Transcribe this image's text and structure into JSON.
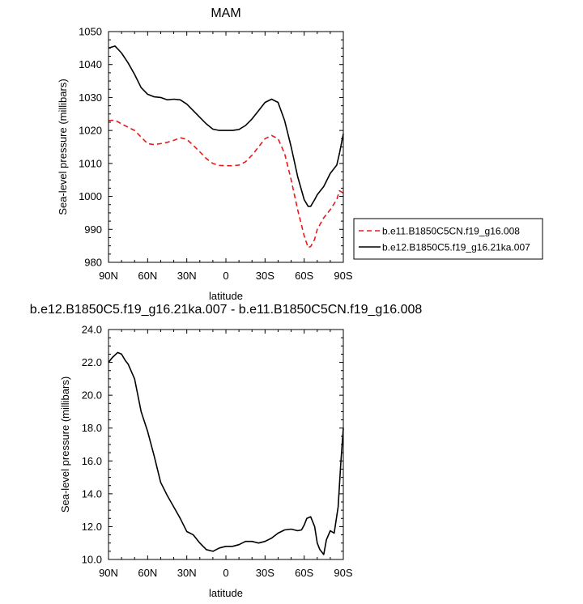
{
  "chart_data": [
    {
      "type": "line",
      "title": "MAM",
      "xlabel": "latitude",
      "ylabel": "Sea-level pressure (millibars)",
      "xlim": [
        90,
        -90
      ],
      "ylim": [
        980,
        1050
      ],
      "x_ticks": [
        90,
        60,
        30,
        0,
        -30,
        -60,
        -90
      ],
      "x_tick_labels": [
        "90N",
        "60N",
        "30N",
        "0",
        "30S",
        "60S",
        "90S"
      ],
      "y_ticks": [
        980,
        990,
        1000,
        1010,
        1020,
        1030,
        1040,
        1050
      ],
      "y_tick_labels": [
        "980",
        "990",
        "1000",
        "1010",
        "1020",
        "1030",
        "1040",
        "1050"
      ],
      "grid": false,
      "legend_position": "right, outside plot",
      "series": [
        {
          "name": "b.e11.B1850C5CN.f19_g16.008",
          "color": "#e8191c",
          "dash": "dashed",
          "x": [
            90,
            85,
            80,
            75,
            70,
            65,
            60,
            55,
            50,
            45,
            40,
            35,
            30,
            25,
            20,
            15,
            10,
            5,
            0,
            -5,
            -10,
            -15,
            -20,
            -25,
            -30,
            -35,
            -40,
            -45,
            -50,
            -55,
            -60,
            -63,
            -65,
            -68,
            -70,
            -75,
            -80,
            -85,
            -87,
            -90
          ],
          "y": [
            1023,
            1023.1,
            1022,
            1021,
            1020,
            1018,
            1016,
            1015.7,
            1016,
            1016.4,
            1017,
            1017.8,
            1017.3,
            1015.5,
            1013.5,
            1011.5,
            1010,
            1009.4,
            1009.3,
            1009.3,
            1009.5,
            1010.5,
            1012.5,
            1015,
            1017.5,
            1018.5,
            1017.5,
            1013,
            1005,
            996,
            988,
            984.5,
            984.8,
            987,
            990,
            993.5,
            996,
            999,
            1001.7,
            1001
          ]
        },
        {
          "name": "b.e12.B1850C5.f19_g16.21ka.007",
          "color": "#000000",
          "dash": "solid",
          "x": [
            90,
            85,
            80,
            75,
            70,
            65,
            60,
            55,
            50,
            45,
            40,
            35,
            30,
            25,
            20,
            15,
            10,
            5,
            0,
            -5,
            -10,
            -15,
            -20,
            -25,
            -30,
            -35,
            -40,
            -45,
            -50,
            -55,
            -60,
            -63,
            -65,
            -68,
            -70,
            -75,
            -80,
            -85,
            -87,
            -90
          ],
          "y": [
            1045,
            1045.6,
            1043.5,
            1040.5,
            1037,
            1033,
            1031,
            1030.2,
            1030,
            1029.3,
            1029.5,
            1029.3,
            1028,
            1026,
            1024,
            1022,
            1020.4,
            1020,
            1020,
            1020,
            1020.3,
            1021.5,
            1023.5,
            1026,
            1028.5,
            1029.5,
            1028.5,
            1023,
            1015,
            1006,
            999,
            997,
            997,
            999,
            1000.5,
            1003,
            1007,
            1009.5,
            1013,
            1019
          ]
        }
      ]
    },
    {
      "type": "line",
      "title": "b.e12.B1850C5.f19_g16.21ka.007 - b.e11.B1850C5CN.f19_g16.008",
      "xlabel": "latitude",
      "ylabel": "Sea-level pressure (millibars)",
      "xlim": [
        90,
        -90
      ],
      "ylim": [
        10,
        24
      ],
      "x_ticks": [
        90,
        60,
        30,
        0,
        -30,
        -60,
        -90
      ],
      "x_tick_labels": [
        "90N",
        "60N",
        "30N",
        "0",
        "30S",
        "60S",
        "90S"
      ],
      "y_ticks": [
        10,
        12,
        14,
        16,
        18,
        20,
        22,
        24
      ],
      "y_tick_labels": [
        "10.0",
        "12.0",
        "14.0",
        "16.0",
        "18.0",
        "20.0",
        "22.0",
        "24.0"
      ],
      "grid": false,
      "series": [
        {
          "color": "#000000",
          "dash": "solid",
          "x": [
            90,
            87,
            83,
            80,
            77,
            75,
            70,
            65,
            60,
            55,
            50,
            45,
            40,
            35,
            30,
            25,
            20,
            15,
            10,
            5,
            0,
            -5,
            -10,
            -15,
            -20,
            -25,
            -30,
            -35,
            -40,
            -45,
            -50,
            -55,
            -58,
            -60,
            -62,
            -65,
            -68,
            -70,
            -72,
            -75,
            -77,
            -80,
            -83,
            -86,
            -88,
            -90
          ],
          "y": [
            22,
            22.3,
            22.6,
            22.5,
            22.1,
            21.9,
            21,
            19,
            17.8,
            16.3,
            14.7,
            13.9,
            13.2,
            12.5,
            11.7,
            11.5,
            11,
            10.6,
            10.5,
            10.7,
            10.8,
            10.8,
            10.9,
            11.1,
            11.1,
            11,
            11.1,
            11.3,
            11.6,
            11.8,
            11.85,
            11.75,
            11.8,
            12.1,
            12.5,
            12.6,
            12,
            11,
            10.6,
            10.3,
            11.2,
            11.75,
            11.6,
            13.2,
            15.8,
            18
          ]
        }
      ]
    }
  ]
}
